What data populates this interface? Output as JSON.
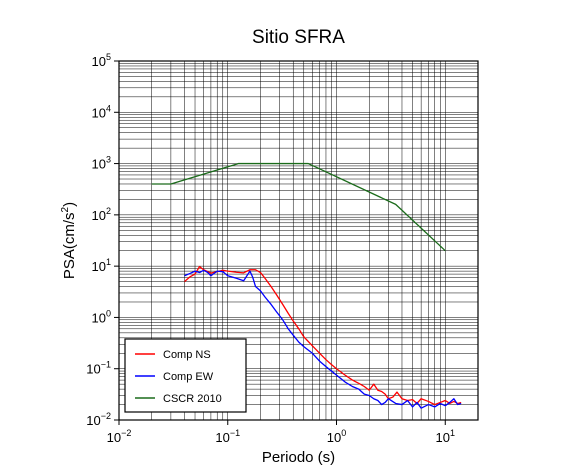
{
  "chart_data": {
    "type": "line",
    "title": "Sitio SFRA",
    "xlabel": "Periodo (s)",
    "ylabel_main": "PSA(cm/s",
    "ylabel_sup": "2",
    "ylabel_close": ")",
    "xscale": "log",
    "yscale": "log",
    "xlim": [
      0.01,
      20
    ],
    "ylim": [
      0.01,
      100000
    ],
    "x_ticks": [
      {
        "base": "10",
        "exp": "−2",
        "value": 0.01
      },
      {
        "base": "10",
        "exp": "−1",
        "value": 0.1
      },
      {
        "base": "10",
        "exp": "0",
        "value": 1
      },
      {
        "base": "10",
        "exp": "1",
        "value": 10
      }
    ],
    "y_ticks": [
      {
        "base": "10",
        "exp": "−2",
        "value": 0.01
      },
      {
        "base": "10",
        "exp": "−1",
        "value": 0.1
      },
      {
        "base": "10",
        "exp": "0",
        "value": 1
      },
      {
        "base": "10",
        "exp": "1",
        "value": 10
      },
      {
        "base": "10",
        "exp": "2",
        "value": 100
      },
      {
        "base": "10",
        "exp": "3",
        "value": 1000
      },
      {
        "base": "10",
        "exp": "4",
        "value": 10000
      },
      {
        "base": "10",
        "exp": "5",
        "value": 100000
      }
    ],
    "grid": true,
    "legend_position": "bottom-left",
    "series": [
      {
        "name": "Comp NS",
        "color": "#ff0000",
        "points": [
          [
            0.04,
            5.0
          ],
          [
            0.045,
            6.2
          ],
          [
            0.05,
            7.0
          ],
          [
            0.055,
            9.8
          ],
          [
            0.06,
            8.5
          ],
          [
            0.07,
            7.3
          ],
          [
            0.08,
            7.8
          ],
          [
            0.09,
            8.3
          ],
          [
            0.1,
            8.0
          ],
          [
            0.12,
            7.6
          ],
          [
            0.14,
            7.4
          ],
          [
            0.16,
            8.5
          ],
          [
            0.18,
            8.5
          ],
          [
            0.2,
            7.5
          ],
          [
            0.22,
            5.8
          ],
          [
            0.25,
            4.0
          ],
          [
            0.28,
            2.8
          ],
          [
            0.32,
            1.8
          ],
          [
            0.36,
            1.2
          ],
          [
            0.4,
            0.85
          ],
          [
            0.45,
            0.6
          ],
          [
            0.5,
            0.42
          ],
          [
            0.6,
            0.28
          ],
          [
            0.7,
            0.2
          ],
          [
            0.8,
            0.15
          ],
          [
            0.9,
            0.12
          ],
          [
            1.0,
            0.1
          ],
          [
            1.2,
            0.075
          ],
          [
            1.4,
            0.06
          ],
          [
            1.6,
            0.052
          ],
          [
            1.8,
            0.045
          ],
          [
            2.0,
            0.038
          ],
          [
            2.2,
            0.05
          ],
          [
            2.4,
            0.038
          ],
          [
            2.6,
            0.036
          ],
          [
            2.8,
            0.032
          ],
          [
            3.0,
            0.026
          ],
          [
            3.3,
            0.028
          ],
          [
            3.6,
            0.035
          ],
          [
            4.0,
            0.026
          ],
          [
            4.5,
            0.024
          ],
          [
            5.0,
            0.025
          ],
          [
            5.5,
            0.021
          ],
          [
            6.0,
            0.026
          ],
          [
            7.0,
            0.023
          ],
          [
            8.0,
            0.02
          ],
          [
            9.0,
            0.022
          ],
          [
            10.0,
            0.024
          ],
          [
            11.0,
            0.021
          ],
          [
            12.0,
            0.023
          ],
          [
            13.0,
            0.021
          ],
          [
            14.0,
            0.022
          ]
        ]
      },
      {
        "name": "Comp EW",
        "color": "#0000ff",
        "points": [
          [
            0.04,
            6.5
          ],
          [
            0.045,
            7.2
          ],
          [
            0.05,
            8.0
          ],
          [
            0.055,
            7.5
          ],
          [
            0.06,
            8.3
          ],
          [
            0.065,
            7.6
          ],
          [
            0.07,
            6.5
          ],
          [
            0.08,
            8.0
          ],
          [
            0.09,
            7.8
          ],
          [
            0.1,
            6.5
          ],
          [
            0.12,
            5.8
          ],
          [
            0.14,
            5.2
          ],
          [
            0.16,
            8.0
          ],
          [
            0.17,
            6.0
          ],
          [
            0.18,
            4.0
          ],
          [
            0.2,
            3.3
          ],
          [
            0.22,
            2.5
          ],
          [
            0.25,
            1.8
          ],
          [
            0.28,
            1.3
          ],
          [
            0.32,
            0.9
          ],
          [
            0.36,
            0.6
          ],
          [
            0.4,
            0.45
          ],
          [
            0.45,
            0.33
          ],
          [
            0.5,
            0.27
          ],
          [
            0.6,
            0.2
          ],
          [
            0.7,
            0.14
          ],
          [
            0.8,
            0.11
          ],
          [
            0.9,
            0.09
          ],
          [
            1.0,
            0.075
          ],
          [
            1.2,
            0.055
          ],
          [
            1.4,
            0.045
          ],
          [
            1.6,
            0.04
          ],
          [
            1.8,
            0.032
          ],
          [
            2.0,
            0.03
          ],
          [
            2.2,
            0.026
          ],
          [
            2.4,
            0.024
          ],
          [
            2.6,
            0.02
          ],
          [
            2.8,
            0.022
          ],
          [
            3.0,
            0.026
          ],
          [
            3.5,
            0.021
          ],
          [
            4.0,
            0.02
          ],
          [
            4.5,
            0.024
          ],
          [
            5.0,
            0.018
          ],
          [
            5.5,
            0.022
          ],
          [
            6.0,
            0.017
          ],
          [
            7.0,
            0.02
          ],
          [
            8.0,
            0.018
          ],
          [
            9.0,
            0.021
          ],
          [
            10.0,
            0.019
          ],
          [
            11.0,
            0.022
          ],
          [
            12.0,
            0.026
          ],
          [
            13.0,
            0.02
          ],
          [
            14.0,
            0.021
          ]
        ]
      },
      {
        "name": "CSCR 2010",
        "color": "#1a6b1a",
        "points": [
          [
            0.02,
            400
          ],
          [
            0.03,
            400
          ],
          [
            0.125,
            1000
          ],
          [
            0.55,
            1000
          ],
          [
            3.5,
            160
          ],
          [
            10.0,
            20
          ]
        ]
      }
    ]
  }
}
